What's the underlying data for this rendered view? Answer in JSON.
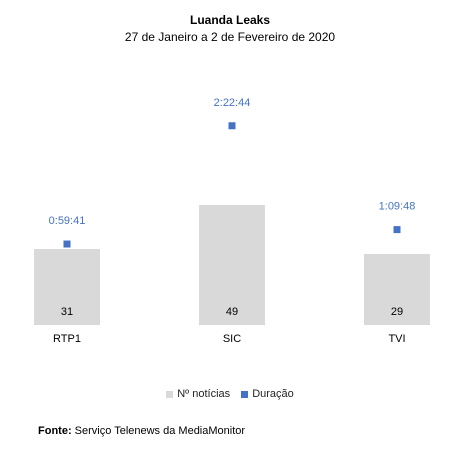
{
  "chart_data": {
    "type": "bar",
    "title": "Luanda Leaks",
    "subtitle": "27 de Janeiro a 2 de Fevereiro de 2020",
    "categories": [
      "RTP1",
      "SIC",
      "TVI"
    ],
    "series": [
      {
        "name": "Nº notícias",
        "type": "bar",
        "values": [
          31,
          49,
          29
        ],
        "color": "#d9d9d9"
      },
      {
        "name": "Duração",
        "type": "scatter",
        "values": [
          "0:59:41",
          "2:22:44",
          "1:09:48"
        ],
        "seconds": [
          3581,
          8564,
          4188
        ],
        "color": "#4472c4"
      }
    ],
    "xlabel": "",
    "ylabel": "",
    "legend_position": "bottom",
    "grid": false
  },
  "legend": {
    "bar_label": "Nº notícias",
    "marker_label": "Duração"
  },
  "source": {
    "label": "Fonte:",
    "text": " Serviço Telenews da MediaMonitor"
  }
}
